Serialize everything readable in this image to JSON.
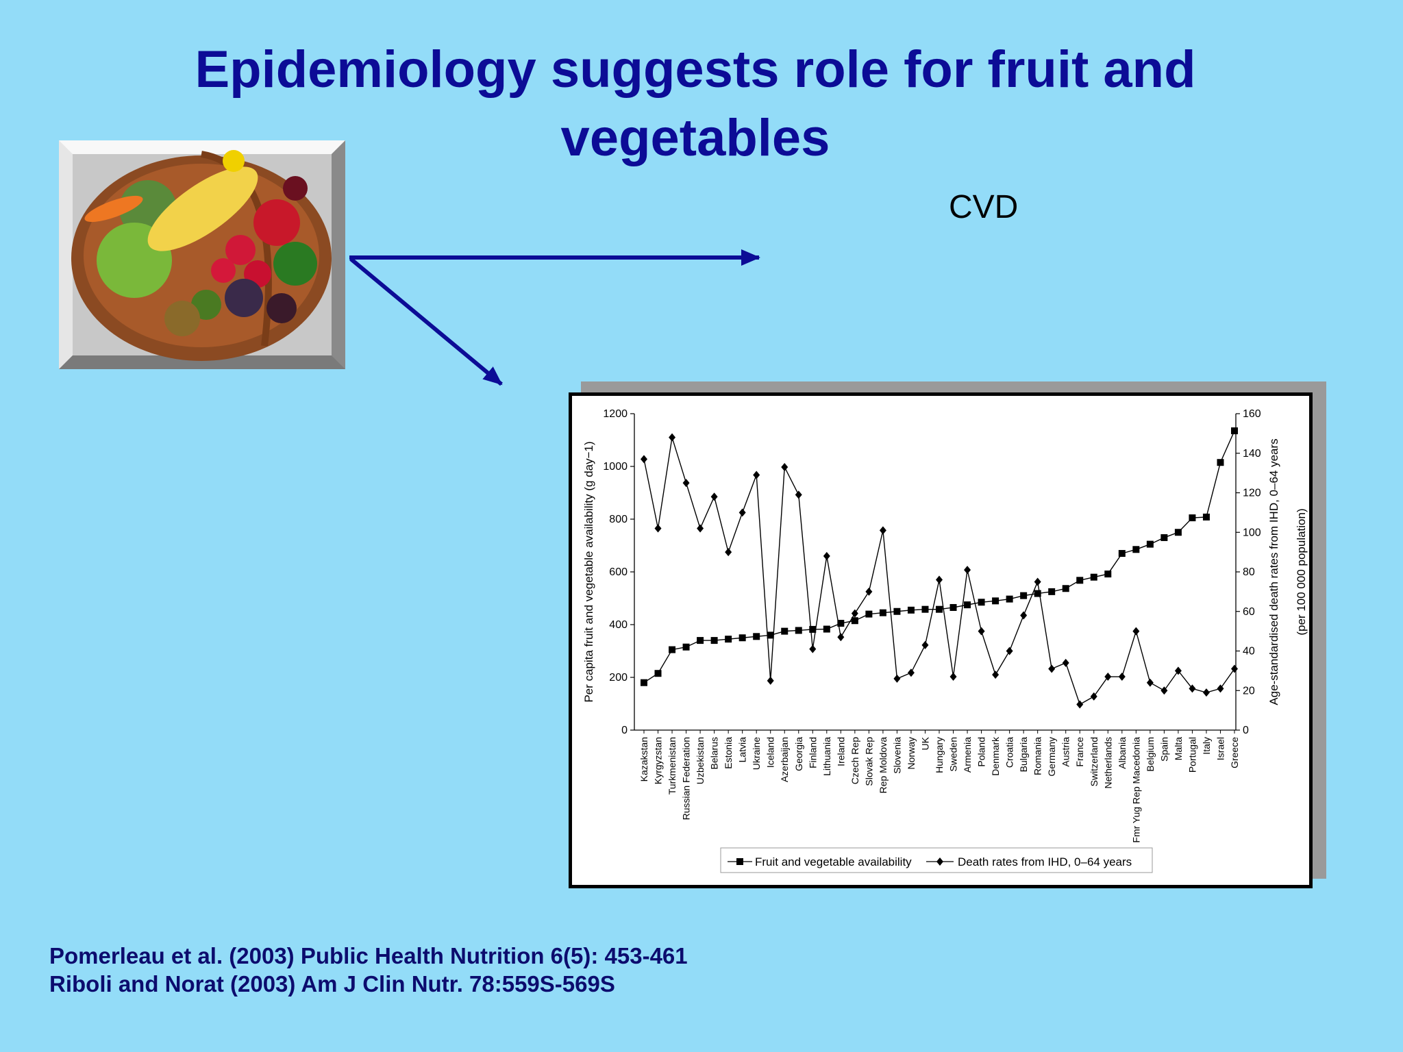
{
  "title": "Epidemiology suggests role for fruit and vegetables",
  "cvd_label": "CVD",
  "references": [
    "Pomerleau et al. (2003) Public Health Nutrition 6(5): 453-461",
    "Riboli and Norat (2003) Am J Clin Nutr. 78:559S-569S"
  ],
  "image": {
    "name": "fruit-vegetable-basket"
  },
  "colors": {
    "background": "#93dcf8",
    "title": "#0c0c96",
    "arrow": "#0c0c96",
    "refs": "#0c0c6e"
  },
  "chart_data": {
    "type": "line",
    "categories": [
      "Kazakstan",
      "Kyrgyzstan",
      "Turkmenistan",
      "Russian Federation",
      "Uzbekistan",
      "Belarus",
      "Estonia",
      "Latvia",
      "Ukraine",
      "Iceland",
      "Azerbaijan",
      "Georgia",
      "Finland",
      "Lithuania",
      "Ireland",
      "Czech Rep",
      "Slovak Rep",
      "Rep Moldova",
      "Slovenia",
      "Norway",
      "UK",
      "Hungary",
      "Sweden",
      "Armenia",
      "Poland",
      "Denmark",
      "Croatia",
      "Bulgaria",
      "Romania",
      "Germany",
      "Austria",
      "France",
      "Switzerland",
      "Netherlands",
      "Albania",
      "Fmr Yug Rep Macedonia",
      "Belgium",
      "Spain",
      "Malta",
      "Portugal",
      "Italy",
      "Israel",
      "Greece"
    ],
    "series": [
      {
        "name": "Fruit and vegetable availability",
        "axis": "left",
        "marker": "square",
        "values": [
          180,
          215,
          305,
          315,
          340,
          340,
          345,
          350,
          355,
          360,
          375,
          378,
          382,
          383,
          405,
          415,
          440,
          445,
          450,
          455,
          458,
          458,
          465,
          475,
          485,
          490,
          497,
          510,
          518,
          525,
          537,
          568,
          580,
          592,
          670,
          685,
          705,
          730,
          750,
          805,
          808,
          1015,
          1135
        ]
      },
      {
        "name": "Death rates from IHD, 0–64 years",
        "axis": "right",
        "marker": "diamond",
        "values": [
          137,
          102,
          148,
          125,
          102,
          118,
          90,
          110,
          129,
          25,
          133,
          119,
          41,
          88,
          47,
          59,
          70,
          101,
          26,
          29,
          43,
          76,
          27,
          81,
          50,
          28,
          40,
          58,
          75,
          31,
          34,
          13,
          17,
          27,
          27,
          50,
          24,
          20,
          30,
          21,
          19,
          21,
          31
        ]
      }
    ],
    "ylabel": "Per capita fruit and vegetable availability (g day−1)",
    "y2label_line1": "Age-standardised death rates from IHD, 0–64 years",
    "y2label_line2": "(per 100 000 population)",
    "ylim": [
      0,
      1200
    ],
    "y2lim": [
      0,
      160
    ],
    "yticks": [
      "0",
      "200",
      "400",
      "600",
      "800",
      "1000",
      "1200"
    ],
    "y2ticks": [
      "0",
      "20",
      "40",
      "60",
      "80",
      "100",
      "120",
      "140",
      "160"
    ],
    "legend_position": "bottom",
    "grid": false
  }
}
